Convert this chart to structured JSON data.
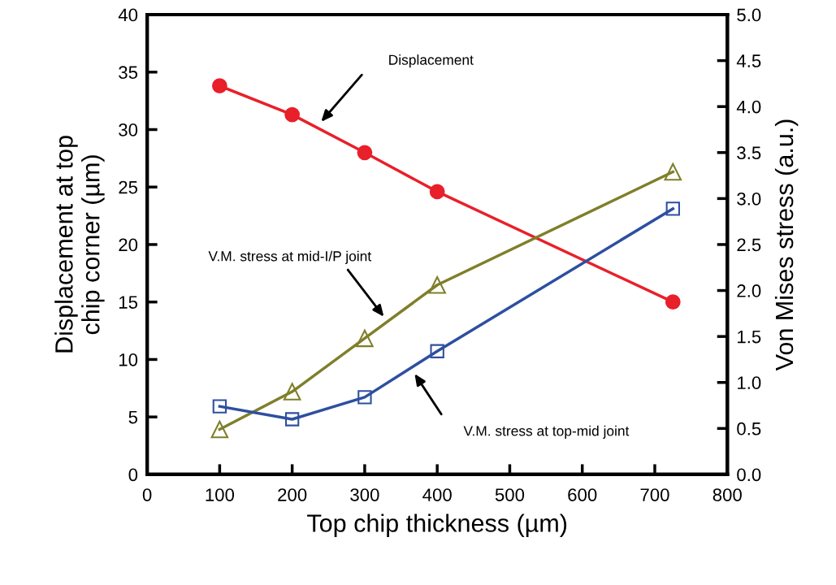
{
  "chart_data": {
    "type": "line",
    "xlabel": "Top chip thickness (µm)",
    "ylabel": "Displacement at top\nchip corner (µm)",
    "y2label": "Von Mises stress (a.u.)",
    "x": [
      100,
      200,
      300,
      400,
      725
    ],
    "series": [
      {
        "color": "#e8202a",
        "marker": "circle",
        "values": [
          33.8,
          31.3,
          28.0,
          24.6,
          15.0
        ]
      },
      {
        "color": "#7f7f2a",
        "marker": "triangle",
        "axis": "y2",
        "values": [
          0.49,
          0.9,
          1.48,
          2.06,
          3.29
        ]
      },
      {
        "color": "#2e4fa0",
        "marker": "square",
        "axis": "y2",
        "values": [
          0.74,
          0.6,
          0.84,
          1.34,
          2.89
        ]
      }
    ],
    "xlim": [
      0,
      800
    ],
    "xticks": [
      0,
      100,
      200,
      300,
      400,
      500,
      600,
      700,
      800
    ],
    "ylim": [
      0,
      40
    ],
    "yticks": [
      0,
      5,
      10,
      15,
      20,
      25,
      30,
      35,
      40
    ],
    "y2lim": [
      0,
      5
    ],
    "y2ticks": [
      {
        "value": 0,
        "label": "0.0"
      },
      {
        "value": 0.5,
        "label": "0.5"
      },
      {
        "value": 1,
        "label": "1.0"
      },
      {
        "value": 1.5,
        "label": "1.5"
      },
      {
        "value": 2,
        "label": "2.0"
      },
      {
        "value": 2.5,
        "label": "2.5"
      },
      {
        "value": 3,
        "label": "3.0"
      },
      {
        "value": 3.5,
        "label": "3.5"
      },
      {
        "value": 4,
        "label": "4.0"
      },
      {
        "value": 4.5,
        "label": "4.5"
      },
      {
        "value": 5,
        "label": "5.0"
      }
    ],
    "grid": false,
    "legend": false,
    "annotations": [
      "Displacement",
      "V.M. stress at mid-I/P joint",
      "V.M. stress at top-mid joint"
    ]
  }
}
